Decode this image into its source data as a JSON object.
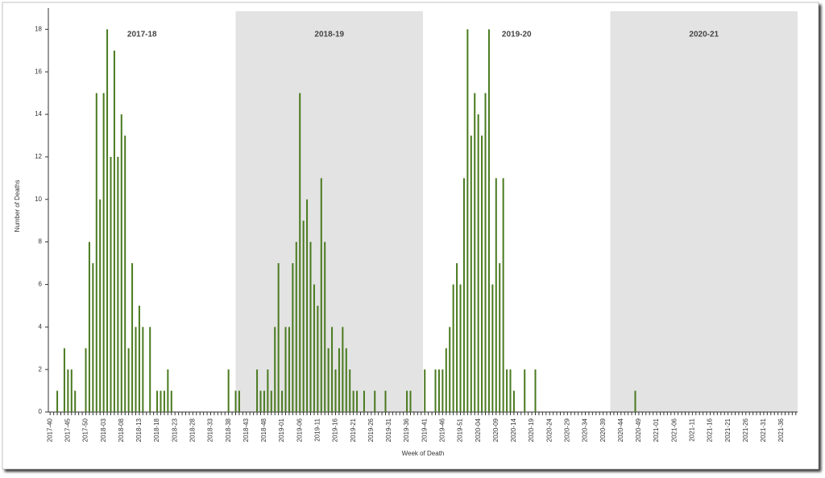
{
  "chart_data": {
    "type": "bar",
    "ylabel": "Number of Deaths",
    "xlabel": "Week of Death",
    "seasons": [
      {
        "label": "2017-18",
        "shaded": false
      },
      {
        "label": "2018-19",
        "shaded": true
      },
      {
        "label": "2019-20",
        "shaded": false
      },
      {
        "label": "2020-21",
        "shaded": true
      }
    ],
    "shade_color": "#e3e3e3",
    "color": "#4a7a1f",
    "ylim": [
      0,
      19
    ],
    "yticks": [
      0,
      2,
      4,
      6,
      8,
      10,
      12,
      14,
      16,
      18
    ],
    "categories": [
      "2017-40",
      null,
      null,
      null,
      null,
      "2017-45",
      null,
      null,
      null,
      null,
      "2017-50",
      null,
      null,
      null,
      null,
      "2018-03",
      null,
      null,
      null,
      null,
      "2018-08",
      null,
      null,
      null,
      null,
      "2018-13",
      null,
      null,
      null,
      null,
      "2018-18",
      null,
      null,
      null,
      null,
      "2018-23",
      null,
      null,
      null,
      null,
      "2018-28",
      null,
      null,
      null,
      null,
      "2018-33",
      null,
      null,
      null,
      null,
      "2018-38",
      null,
      null,
      null,
      null,
      "2018-43",
      null,
      null,
      null,
      null,
      "2018-48",
      null,
      null,
      null,
      null,
      "2019-01",
      null,
      null,
      null,
      null,
      "2019-06",
      null,
      null,
      null,
      null,
      "2019-11",
      null,
      null,
      null,
      null,
      "2019-16",
      null,
      null,
      null,
      null,
      "2019-21",
      null,
      null,
      null,
      null,
      "2019-26",
      null,
      null,
      null,
      null,
      "2019-31",
      null,
      null,
      null,
      null,
      "2019-36",
      null,
      null,
      null,
      null,
      "2019-41",
      null,
      null,
      null,
      null,
      "2019-46",
      null,
      null,
      null,
      null,
      "2019-51",
      null,
      null,
      null,
      null,
      "2020-04",
      null,
      null,
      null,
      null,
      "2020-09",
      null,
      null,
      null,
      null,
      "2020-14",
      null,
      null,
      null,
      null,
      "2020-19",
      null,
      null,
      null,
      null,
      "2020-24",
      null,
      null,
      null,
      null,
      "2020-29",
      null,
      null,
      null,
      null,
      "2020-34",
      null,
      null,
      null,
      null,
      "2020-39",
      null,
      null,
      null,
      null,
      "2020-44",
      null,
      null,
      null,
      null,
      "2020-49",
      null,
      null,
      null,
      null,
      "2021-01",
      null,
      null,
      null,
      null,
      "2021-06",
      null,
      null,
      null,
      null,
      "2021-11",
      null,
      null,
      null,
      null,
      "2021-16",
      null,
      null,
      null,
      null,
      "2021-21",
      null,
      null,
      null,
      null,
      "2021-26",
      null,
      null,
      null,
      null,
      "2021-31",
      null,
      null,
      null,
      null,
      "2021-36",
      null,
      null,
      null,
      null
    ],
    "values": [
      0,
      0,
      1,
      0,
      3,
      2,
      2,
      1,
      0,
      0,
      3,
      8,
      7,
      15,
      10,
      15,
      18,
      12,
      17,
      12,
      14,
      13,
      3,
      7,
      4,
      5,
      4,
      0,
      4,
      0,
      1,
      1,
      1,
      2,
      1,
      0,
      0,
      0,
      0,
      0,
      0,
      0,
      0,
      0,
      0,
      0,
      0,
      0,
      0,
      0,
      2,
      0,
      1,
      1,
      0,
      0,
      0,
      0,
      2,
      1,
      1,
      2,
      1,
      4,
      7,
      1,
      4,
      4,
      7,
      8,
      15,
      9,
      10,
      8,
      6,
      5,
      11,
      8,
      3,
      4,
      2,
      3,
      4,
      3,
      2,
      1,
      1,
      0,
      1,
      0,
      0,
      1,
      0,
      0,
      1,
      0,
      0,
      0,
      0,
      0,
      1,
      1,
      0,
      0,
      0,
      2,
      0,
      0,
      2,
      2,
      2,
      3,
      4,
      6,
      7,
      6,
      11,
      18,
      13,
      15,
      14,
      13,
      15,
      18,
      6,
      11,
      7,
      11,
      2,
      2,
      1,
      0,
      0,
      2,
      0,
      0,
      2,
      0,
      0,
      0,
      0,
      0,
      0,
      0,
      0,
      0,
      0,
      0,
      0,
      0,
      0,
      0,
      0,
      0,
      0,
      0,
      0,
      0,
      0,
      0,
      0,
      0,
      0,
      0,
      1,
      0,
      0,
      0,
      0,
      0,
      0,
      0,
      0,
      0,
      0,
      0,
      0,
      0,
      0,
      0,
      0,
      0,
      0,
      0,
      0,
      0,
      0,
      0,
      0,
      0,
      0,
      0,
      0,
      0,
      0,
      0,
      0,
      0,
      0,
      0,
      0,
      0,
      0,
      0,
      0,
      0,
      0,
      0,
      0,
      0
    ]
  }
}
